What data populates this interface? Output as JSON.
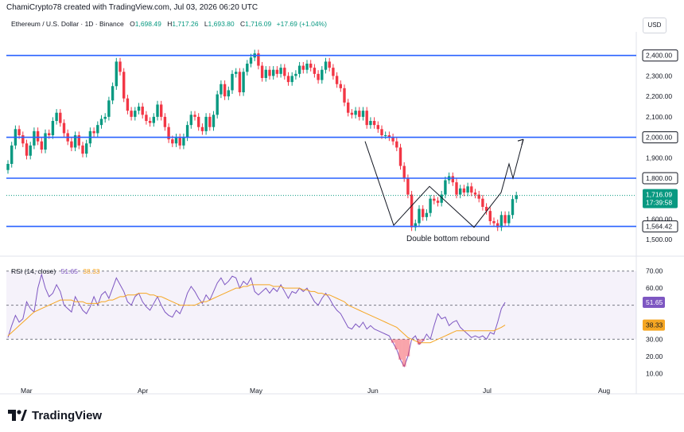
{
  "header": {
    "credit": "ChamiCrypto78 created with TradingView.com, Jul 03, 2026 06:20 UTC",
    "symbol": "Ethereum / U.S. Dollar · 1D · Binance",
    "o_label": "O",
    "o_value": "1,698.49",
    "h_label": "H",
    "h_value": "1,717.26",
    "l_label": "L",
    "l_value": "1,693.80",
    "c_label": "C",
    "c_value": "1,716.09",
    "change": "+17.69 (+1.04%)",
    "currency": "USD"
  },
  "rsi_legend": {
    "label": "RSI (14, close)",
    "rsi": "51.65",
    "ma": "38.33"
  },
  "footer": {
    "brand": "TradingView"
  },
  "colors": {
    "up": "#089981",
    "down": "#f23645",
    "level": "#2962ff",
    "rsi": "#7e57c2",
    "rsi_ma": "#f5a623",
    "pattern": "#131722"
  },
  "chart_data": [
    {
      "type": "candlestick",
      "title": "Ethereum / U.S. Dollar · 1D · Binance",
      "x_ticks": [
        "Mar",
        "Apr",
        "May",
        "Jun",
        "Jul",
        "Aug"
      ],
      "y_ticks": [
        "1,500.00",
        "1,600.00",
        "1,700.00",
        "1,900.00",
        "2,100.00",
        "2,200.00",
        "2,300.00"
      ],
      "ylim": [
        1450,
        2500
      ],
      "levels": [
        {
          "value": 2400,
          "label": "2,400.00"
        },
        {
          "value": 2000,
          "label": "2,000.00"
        },
        {
          "value": 1800,
          "label": "1,800.00"
        },
        {
          "value": 1564.42,
          "label": "1,564.42"
        }
      ],
      "last_price": {
        "value": 1716.09,
        "label": "1,716.09",
        "countdown": "17:39:58"
      },
      "annotation": "Double bottom rebound",
      "pattern_path": [
        {
          "date": "May 26",
          "price": 1980
        },
        {
          "date": "Jun 05",
          "price": 1570
        },
        {
          "date": "Jun 16",
          "price": 1760
        },
        {
          "date": "Jun 27",
          "price": 1560
        },
        {
          "date": "Jul 04",
          "price": 1730
        },
        {
          "date": "Jul 07",
          "price": 1870
        },
        {
          "date": "Jul 09",
          "price": 1800
        },
        {
          "date": "Jul 12",
          "price": 1990
        }
      ],
      "candles": [
        [
          1840,
          1870
        ],
        [
          1870,
          1960
        ],
        [
          1960,
          2040
        ],
        [
          2040,
          2010
        ],
        [
          2010,
          1970
        ],
        [
          1970,
          1910
        ],
        [
          1910,
          1960
        ],
        [
          1960,
          2030
        ],
        [
          2030,
          1980
        ],
        [
          1980,
          1940
        ],
        [
          1940,
          2020
        ],
        [
          2020,
          2010
        ],
        [
          2010,
          2080
        ],
        [
          2080,
          2120
        ],
        [
          2120,
          2070
        ],
        [
          2070,
          2020
        ],
        [
          2020,
          1980
        ],
        [
          1980,
          1950
        ],
        [
          1950,
          2010
        ],
        [
          2010,
          1960
        ],
        [
          1960,
          1920
        ],
        [
          1920,
          1970
        ],
        [
          1970,
          2030
        ],
        [
          2030,
          2020
        ],
        [
          2020,
          2060
        ],
        [
          2060,
          2090
        ],
        [
          2090,
          2100
        ],
        [
          2100,
          2180
        ],
        [
          2180,
          2250
        ],
        [
          2250,
          2370
        ],
        [
          2370,
          2320
        ],
        [
          2320,
          2190
        ],
        [
          2190,
          2130
        ],
        [
          2130,
          2100
        ],
        [
          2100,
          2130
        ],
        [
          2130,
          2150
        ],
        [
          2150,
          2110
        ],
        [
          2110,
          2080
        ],
        [
          2080,
          2070
        ],
        [
          2070,
          2100
        ],
        [
          2100,
          2160
        ],
        [
          2160,
          2100
        ],
        [
          2100,
          2050
        ],
        [
          2050,
          1990
        ],
        [
          1990,
          1970
        ],
        [
          1970,
          2000
        ],
        [
          2000,
          1960
        ],
        [
          1960,
          2000
        ],
        [
          2000,
          2060
        ],
        [
          2060,
          2110
        ],
        [
          2110,
          2100
        ],
        [
          2100,
          2050
        ],
        [
          2050,
          2030
        ],
        [
          2030,
          2100
        ],
        [
          2100,
          2050
        ],
        [
          2050,
          2110
        ],
        [
          2110,
          2210
        ],
        [
          2210,
          2260
        ],
        [
          2260,
          2200
        ],
        [
          2200,
          2230
        ],
        [
          2230,
          2310
        ],
        [
          2310,
          2320
        ],
        [
          2320,
          2220
        ],
        [
          2220,
          2320
        ],
        [
          2320,
          2360
        ],
        [
          2360,
          2390
        ],
        [
          2390,
          2410
        ],
        [
          2410,
          2350
        ],
        [
          2350,
          2290
        ],
        [
          2290,
          2330
        ],
        [
          2330,
          2300
        ],
        [
          2300,
          2330
        ],
        [
          2330,
          2310
        ],
        [
          2310,
          2340
        ],
        [
          2340,
          2300
        ],
        [
          2300,
          2270
        ],
        [
          2270,
          2300
        ],
        [
          2300,
          2310
        ],
        [
          2310,
          2350
        ],
        [
          2350,
          2330
        ],
        [
          2330,
          2360
        ],
        [
          2360,
          2340
        ],
        [
          2340,
          2310
        ],
        [
          2310,
          2280
        ],
        [
          2280,
          2330
        ],
        [
          2330,
          2370
        ],
        [
          2370,
          2340
        ],
        [
          2340,
          2300
        ],
        [
          2300,
          2260
        ],
        [
          2260,
          2240
        ],
        [
          2240,
          2170
        ],
        [
          2170,
          2120
        ],
        [
          2120,
          2110
        ],
        [
          2110,
          2130
        ],
        [
          2130,
          2100
        ],
        [
          2100,
          2130
        ],
        [
          2130,
          2060
        ],
        [
          2060,
          2080
        ],
        [
          2080,
          2060
        ],
        [
          2060,
          2040
        ],
        [
          2040,
          2010
        ],
        [
          2010,
          2010
        ],
        [
          2010,
          2000
        ],
        [
          2000,
          1980
        ],
        [
          1980,
          1950
        ],
        [
          1950,
          1860
        ],
        [
          1860,
          1800
        ],
        [
          1800,
          1720
        ],
        [
          1720,
          1560
        ],
        [
          1560,
          1580
        ],
        [
          1580,
          1650
        ],
        [
          1650,
          1610
        ],
        [
          1610,
          1630
        ],
        [
          1630,
          1700
        ],
        [
          1700,
          1690
        ],
        [
          1690,
          1680
        ],
        [
          1680,
          1720
        ],
        [
          1720,
          1790
        ],
        [
          1790,
          1810
        ],
        [
          1810,
          1780
        ],
        [
          1780,
          1720
        ],
        [
          1720,
          1750
        ],
        [
          1750,
          1730
        ],
        [
          1730,
          1760
        ],
        [
          1760,
          1730
        ],
        [
          1730,
          1720
        ],
        [
          1720,
          1700
        ],
        [
          1700,
          1660
        ],
        [
          1660,
          1640
        ],
        [
          1640,
          1590
        ],
        [
          1590,
          1580
        ],
        [
          1580,
          1560
        ],
        [
          1560,
          1620
        ],
        [
          1620,
          1580
        ],
        [
          1580,
          1620
        ],
        [
          1620,
          1698
        ],
        [
          1698,
          1716
        ]
      ]
    },
    {
      "type": "line",
      "title": "RSI (14, close)",
      "y_ticks": [
        "70.00",
        "60.00",
        "30.00",
        "20.00",
        "10.00"
      ],
      "ylim": [
        5,
        75
      ],
      "bands": [
        30,
        50,
        70
      ],
      "series": [
        {
          "name": "RSI",
          "last": "51.65",
          "values": [
            31,
            38,
            44,
            40,
            42,
            52,
            48,
            46,
            60,
            68,
            60,
            55,
            57,
            62,
            58,
            50,
            48,
            46,
            55,
            51,
            47,
            45,
            49,
            55,
            50,
            56,
            58,
            54,
            60,
            66,
            62,
            58,
            52,
            50,
            55,
            57,
            52,
            49,
            47,
            51,
            55,
            50,
            46,
            44,
            43,
            47,
            45,
            50,
            57,
            61,
            58,
            54,
            51,
            56,
            53,
            58,
            63,
            66,
            62,
            64,
            67,
            66,
            60,
            64,
            62,
            66,
            58,
            56,
            58,
            60,
            57,
            60,
            58,
            62,
            58,
            54,
            58,
            57,
            60,
            58,
            60,
            56,
            52,
            50,
            54,
            57,
            54,
            50,
            47,
            45,
            41,
            37,
            36,
            39,
            37,
            40,
            36,
            38,
            36,
            35,
            34,
            33,
            32,
            28,
            24,
            18,
            14,
            20,
            30,
            32,
            27,
            29,
            33,
            30,
            38,
            45,
            42,
            43,
            38,
            40,
            41,
            37,
            35,
            33,
            31,
            32,
            31,
            32,
            30,
            34,
            33,
            40,
            48,
            51.65
          ]
        },
        {
          "name": "RSI-based MA",
          "last": "38.33",
          "values": [
            32,
            34,
            36,
            38,
            40,
            42,
            44,
            46,
            47,
            48,
            49,
            50,
            51,
            52,
            53,
            53,
            53,
            53,
            52,
            52,
            52,
            51,
            51,
            51,
            51,
            52,
            52,
            53,
            53,
            54,
            55,
            55,
            56,
            56,
            56,
            57,
            57,
            57,
            56,
            56,
            55,
            55,
            54,
            53,
            52,
            51,
            50,
            50,
            50,
            50,
            50,
            51,
            52,
            52,
            53,
            54,
            55,
            56,
            57,
            58,
            59,
            60,
            60,
            61,
            61,
            62,
            62,
            62,
            62,
            62,
            62,
            61,
            61,
            61,
            60,
            60,
            60,
            60,
            60,
            59,
            59,
            58,
            58,
            57,
            57,
            56,
            56,
            55,
            54,
            53,
            52,
            50,
            49,
            48,
            47,
            46,
            45,
            44,
            43,
            42,
            41,
            40,
            39,
            38,
            37,
            35,
            33,
            31,
            30,
            29,
            28,
            28,
            28,
            28,
            29,
            30,
            31,
            32,
            33,
            34,
            35,
            35,
            35,
            35,
            35,
            35,
            35,
            35,
            35,
            35,
            35,
            36,
            37,
            38.33
          ]
        }
      ]
    }
  ]
}
